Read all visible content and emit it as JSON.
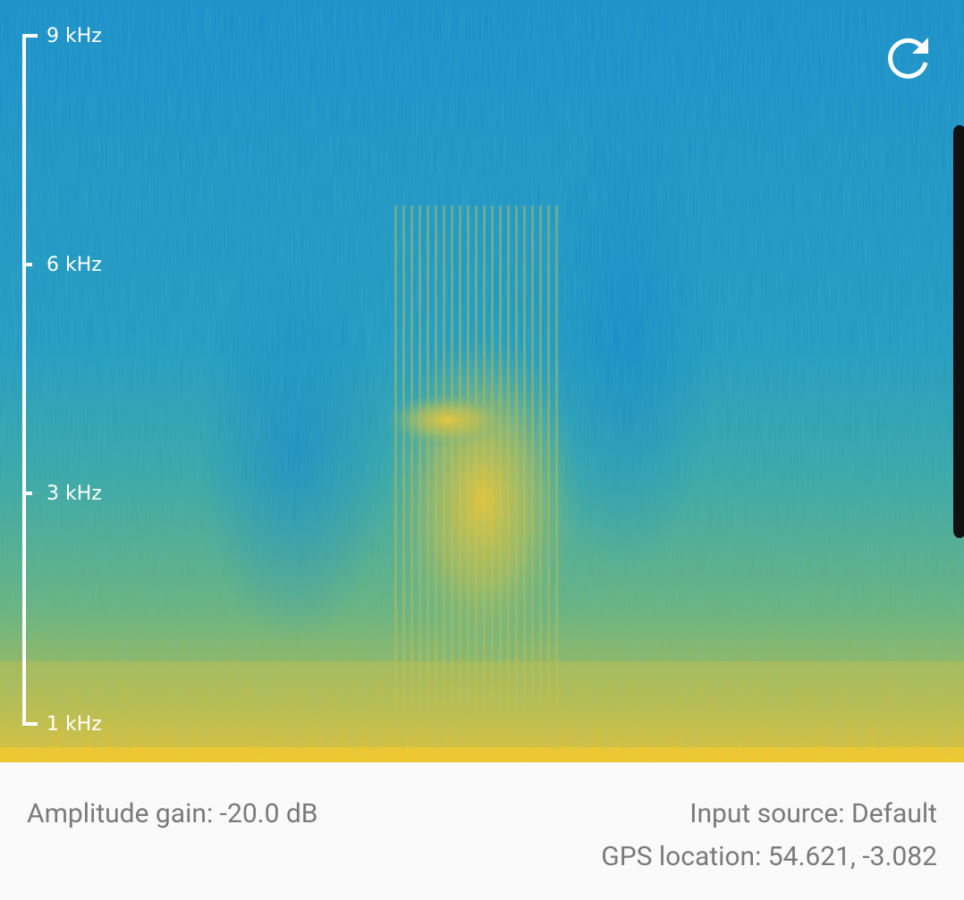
{
  "spectrogram": {
    "axis_labels": [
      "9 kHz",
      "6 kHz",
      "3 kHz",
      "1 kHz"
    ]
  },
  "footer": {
    "amplitude_gain": "Amplitude gain: -20.0 dB",
    "input_source": "Input source: Default",
    "gps_location": "GPS location: 54.621, -3.082"
  }
}
